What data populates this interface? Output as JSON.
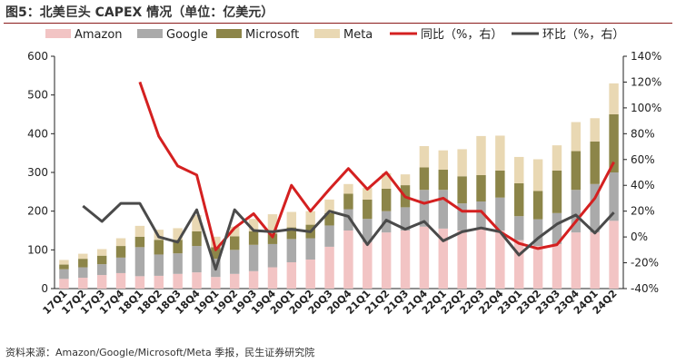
{
  "title": "图5：北美巨头 CAPEX 情况（单位：亿美元）",
  "source": "资料来源：Amazon/Google/Microsoft/Meta 季报，民生证券研究院",
  "colors": {
    "amazon": "#f2c4c4",
    "google": "#aaaaaa",
    "microsoft": "#8c8549",
    "meta": "#e9d8b3",
    "yoy": "#d42020",
    "qoq": "#4a4a4a"
  },
  "chart_data": {
    "type": "bar",
    "stacked": true,
    "categories": [
      "17Q1",
      "17Q2",
      "17Q3",
      "17Q4",
      "18Q1",
      "18Q2",
      "18Q3",
      "18Q4",
      "19Q1",
      "19Q2",
      "19Q3",
      "19Q4",
      "20Q1",
      "20Q2",
      "20Q3",
      "20Q4",
      "21Q1",
      "21Q2",
      "21Q3",
      "21Q4",
      "22Q1",
      "22Q2",
      "22Q3",
      "22Q4",
      "23Q1",
      "23Q2",
      "23Q3",
      "23Q4",
      "24Q1",
      "24Q2"
    ],
    "series": [
      {
        "name": "Amazon",
        "type": "bar",
        "axis": "left",
        "values": [
          25,
          28,
          35,
          40,
          32,
          33,
          38,
          42,
          30,
          38,
          45,
          55,
          68,
          75,
          108,
          150,
          120,
          145,
          150,
          160,
          155,
          150,
          155,
          150,
          125,
          110,
          115,
          145,
          145,
          175
        ]
      },
      {
        "name": "Google",
        "type": "bar",
        "axis": "left",
        "values": [
          25,
          27,
          28,
          40,
          75,
          55,
          53,
          68,
          47,
          62,
          68,
          60,
          60,
          55,
          55,
          55,
          60,
          55,
          60,
          95,
          100,
          70,
          70,
          85,
          62,
          69,
          80,
          110,
          125,
          125
        ]
      },
      {
        "name": "Microsoft",
        "type": "bar",
        "axis": "left",
        "values": [
          12,
          22,
          22,
          30,
          27,
          38,
          35,
          38,
          30,
          35,
          35,
          27,
          30,
          35,
          32,
          40,
          50,
          58,
          57,
          58,
          52,
          70,
          68,
          70,
          85,
          73,
          110,
          100,
          110,
          150
        ]
      },
      {
        "name": "Meta",
        "type": "bar",
        "axis": "left",
        "values": [
          12,
          13,
          17,
          20,
          28,
          26,
          30,
          42,
          27,
          25,
          32,
          50,
          40,
          35,
          35,
          25,
          30,
          40,
          28,
          55,
          50,
          70,
          101,
          90,
          68,
          82,
          65,
          75,
          60,
          80
        ]
      },
      {
        "name": "同比（%，右）",
        "type": "line",
        "axis": "right",
        "values": [
          null,
          null,
          null,
          null,
          120,
          78,
          55,
          48,
          -10,
          7,
          18,
          0,
          40,
          20,
          37,
          53,
          37,
          50,
          31,
          26,
          30,
          20,
          20,
          4,
          -5,
          -9,
          -6,
          12,
          30,
          58
        ]
      },
      {
        "name": "环比（%，右）",
        "type": "line",
        "axis": "right",
        "values": [
          null,
          24,
          12,
          26,
          26,
          0,
          -4,
          21,
          -25,
          21,
          5,
          4,
          6,
          4,
          20,
          16,
          -6,
          13,
          6,
          12,
          -3,
          4,
          7,
          4,
          -14,
          -1,
          10,
          17,
          3,
          19
        ]
      }
    ],
    "left_axis": {
      "min": 0,
      "max": 600,
      "step": 100,
      "ticks": [
        "0",
        "100",
        "200",
        "300",
        "400",
        "500",
        "600"
      ]
    },
    "right_axis": {
      "min": -40,
      "max": 140,
      "step": 20,
      "ticks": [
        "-40%",
        "-20%",
        "0%",
        "20%",
        "40%",
        "60%",
        "80%",
        "100%",
        "120%",
        "140%"
      ]
    },
    "legend_position": "top",
    "grid": false
  }
}
